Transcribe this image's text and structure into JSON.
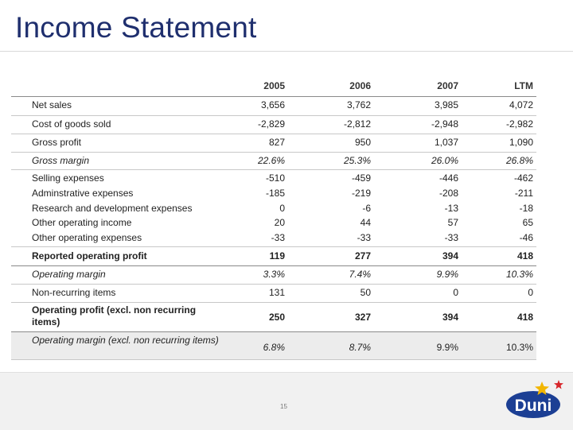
{
  "title": "Income Statement",
  "columns": [
    "2005",
    "2006",
    "2007",
    "LTM"
  ],
  "rows": [
    {
      "label": "Net sales",
      "values": [
        "3,656",
        "3,762",
        "3,985",
        "4,072"
      ]
    },
    {
      "label": "Cost of goods sold",
      "values": [
        "-2,829",
        "-2,812",
        "-2,948",
        "-2,982"
      ]
    },
    {
      "label": "Gross profit",
      "values": [
        "827",
        "950",
        "1,037",
        "1,090"
      ]
    },
    {
      "label": "Gross margin",
      "values": [
        "22.6%",
        "25.3%",
        "26.0%",
        "26.8%"
      ]
    },
    {
      "label": "Selling expenses",
      "values": [
        "-510",
        "-459",
        "-446",
        "-462"
      ]
    },
    {
      "label": "Adminstrative expenses",
      "values": [
        "-185",
        "-219",
        "-208",
        "-211"
      ]
    },
    {
      "label": "Research and development expenses",
      "values": [
        "0",
        "-6",
        "-13",
        "-18"
      ]
    },
    {
      "label": "Other operating income",
      "values": [
        "20",
        "44",
        "57",
        "65"
      ]
    },
    {
      "label": "Other operating expenses",
      "values": [
        "-33",
        "-33",
        "-33",
        "-46"
      ]
    },
    {
      "label": "Reported operating profit",
      "values": [
        "119",
        "277",
        "394",
        "418"
      ]
    },
    {
      "label": "Operating margin",
      "values": [
        "3.3%",
        "7.4%",
        "9.9%",
        "10.3%"
      ]
    },
    {
      "label": "Non-recurring items",
      "values": [
        "131",
        "50",
        "0",
        "0"
      ]
    },
    {
      "label": "Operating profit (excl. non recurring items)",
      "values": [
        "250",
        "327",
        "394",
        "418"
      ]
    },
    {
      "label": "Operating margin (excl. non recurring items)",
      "values": [
        "6.8%",
        "8.7%",
        "9.9%",
        "10.3%"
      ]
    }
  ],
  "page_number": "15",
  "logo": {
    "text": "Duni",
    "brand_color": "#1c3f94",
    "star_colors": [
      "#f2b600",
      "#d7262b"
    ]
  }
}
